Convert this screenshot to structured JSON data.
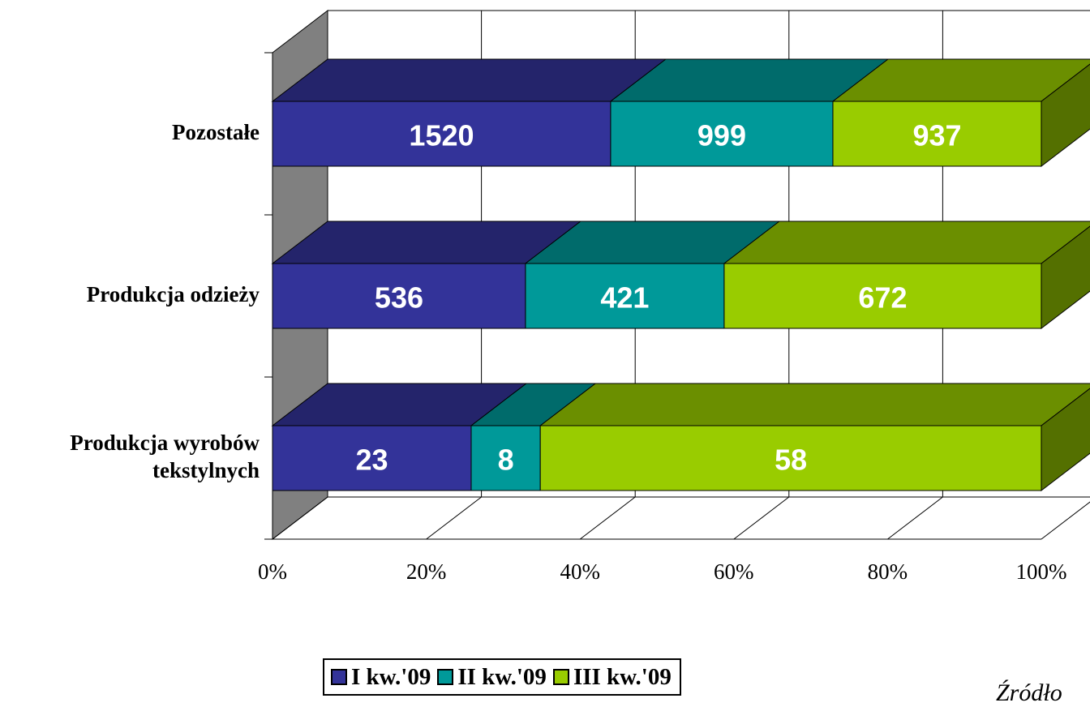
{
  "chart_data": {
    "type": "bar",
    "orientation": "horizontal",
    "stacked": "percent",
    "style": "3d",
    "categories": [
      "Produkcja wyrobów tekstylnych",
      "Produkcja odzieży",
      "Pozostałe"
    ],
    "category_lines": [
      [
        "Produkcja wyrobów",
        "tekstylnych"
      ],
      [
        "Produkcja odzieży"
      ],
      [
        "Pozostałe"
      ]
    ],
    "series": [
      {
        "name": "I kw.'09",
        "values": [
          23,
          536,
          1520
        ],
        "color": "#333399"
      },
      {
        "name": "II kw.'09",
        "values": [
          8,
          421,
          999
        ],
        "color": "#009999"
      },
      {
        "name": "III kw.'09",
        "values": [
          58,
          672,
          937
        ],
        "color": "#99CC00"
      }
    ],
    "x_ticks": [
      "0%",
      "20%",
      "40%",
      "60%",
      "80%",
      "100%"
    ],
    "xlim": [
      0,
      100
    ],
    "grid": true,
    "legend_position": "bottom",
    "colors": {
      "wall": "#808080",
      "gridline": "#000000",
      "data_label": "#ffffff"
    }
  },
  "footer": {
    "source_text": "Źródło"
  }
}
